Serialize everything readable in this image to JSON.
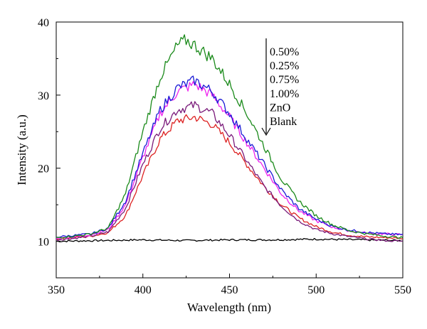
{
  "chart_data": {
    "type": "line",
    "title": "",
    "xlabel": "Wavelength (nm)",
    "ylabel": "Intensity (a.u.)",
    "xlim": [
      350,
      550
    ],
    "ylim": [
      5,
      40
    ],
    "x_ticks": [
      350,
      400,
      450,
      500,
      550
    ],
    "y_ticks": [
      10,
      20,
      30,
      40
    ],
    "grid": false,
    "legend_position": "top-right",
    "legend_arrow": true,
    "legend_labels": [
      "0.50%",
      "0.25%",
      "0.75%",
      "1.00%",
      "ZnO",
      "Blank"
    ],
    "series": [
      {
        "name": "0.50%",
        "color": "#1a8a1a",
        "points": [
          [
            350,
            10.5
          ],
          [
            360,
            10.7
          ],
          [
            370,
            11.0
          ],
          [
            380,
            11.8
          ],
          [
            390,
            16.5
          ],
          [
            400,
            25.0
          ],
          [
            410,
            32.5
          ],
          [
            420,
            36.8
          ],
          [
            425,
            37.5
          ],
          [
            430,
            36.8
          ],
          [
            440,
            35.0
          ],
          [
            450,
            31.5
          ],
          [
            460,
            27.5
          ],
          [
            470,
            23.0
          ],
          [
            480,
            18.5
          ],
          [
            490,
            15.5
          ],
          [
            500,
            13.5
          ],
          [
            510,
            12.2
          ],
          [
            520,
            11.4
          ],
          [
            530,
            11.0
          ],
          [
            540,
            10.7
          ],
          [
            550,
            10.5
          ]
        ]
      },
      {
        "name": "0.25%",
        "color": "#1a1ad6",
        "points": [
          [
            350,
            10.6
          ],
          [
            360,
            10.8
          ],
          [
            370,
            11.0
          ],
          [
            380,
            11.8
          ],
          [
            390,
            15.5
          ],
          [
            400,
            22.0
          ],
          [
            410,
            28.0
          ],
          [
            420,
            31.0
          ],
          [
            430,
            32.0
          ],
          [
            440,
            30.5
          ],
          [
            450,
            27.5
          ],
          [
            460,
            24.0
          ],
          [
            470,
            20.5
          ],
          [
            480,
            17.0
          ],
          [
            490,
            14.5
          ],
          [
            500,
            13.0
          ],
          [
            510,
            12.0
          ],
          [
            520,
            11.5
          ],
          [
            530,
            11.2
          ],
          [
            540,
            11.0
          ],
          [
            550,
            10.9
          ]
        ]
      },
      {
        "name": "0.75%",
        "color": "#ee22ee",
        "points": [
          [
            350,
            10.4
          ],
          [
            360,
            10.6
          ],
          [
            370,
            10.9
          ],
          [
            380,
            11.6
          ],
          [
            390,
            15.0
          ],
          [
            400,
            21.5
          ],
          [
            410,
            27.5
          ],
          [
            420,
            30.5
          ],
          [
            430,
            31.5
          ],
          [
            440,
            30.0
          ],
          [
            450,
            27.0
          ],
          [
            460,
            23.5
          ],
          [
            470,
            20.0
          ],
          [
            480,
            16.5
          ],
          [
            490,
            14.2
          ],
          [
            500,
            12.8
          ],
          [
            510,
            11.9
          ],
          [
            520,
            11.4
          ],
          [
            530,
            11.1
          ],
          [
            540,
            11.0
          ],
          [
            550,
            10.9
          ]
        ]
      },
      {
        "name": "1.00%",
        "color": "#7a1a7a",
        "points": [
          [
            350,
            10.2
          ],
          [
            360,
            10.4
          ],
          [
            370,
            10.7
          ],
          [
            380,
            11.3
          ],
          [
            390,
            14.5
          ],
          [
            400,
            20.5
          ],
          [
            410,
            25.5
          ],
          [
            420,
            28.0
          ],
          [
            430,
            28.6
          ],
          [
            440,
            27.5
          ],
          [
            450,
            24.5
          ],
          [
            460,
            21.0
          ],
          [
            470,
            17.5
          ],
          [
            480,
            14.8
          ],
          [
            490,
            12.8
          ],
          [
            500,
            11.6
          ],
          [
            510,
            11.0
          ],
          [
            520,
            10.6
          ],
          [
            530,
            10.3
          ],
          [
            540,
            10.1
          ],
          [
            550,
            10.0
          ]
        ]
      },
      {
        "name": "ZnO",
        "color": "#dd2222",
        "points": [
          [
            350,
            10.3
          ],
          [
            360,
            10.5
          ],
          [
            370,
            10.7
          ],
          [
            380,
            11.2
          ],
          [
            390,
            13.5
          ],
          [
            400,
            19.0
          ],
          [
            410,
            24.0
          ],
          [
            420,
            26.5
          ],
          [
            430,
            27.0
          ],
          [
            440,
            26.0
          ],
          [
            450,
            23.5
          ],
          [
            460,
            20.5
          ],
          [
            470,
            17.5
          ],
          [
            480,
            15.0
          ],
          [
            490,
            13.2
          ],
          [
            500,
            12.0
          ],
          [
            510,
            11.2
          ],
          [
            520,
            10.8
          ],
          [
            530,
            10.6
          ],
          [
            540,
            10.5
          ],
          [
            550,
            10.4
          ]
        ]
      },
      {
        "name": "Blank",
        "color": "#000000",
        "points": [
          [
            350,
            10.0
          ],
          [
            375,
            10.1
          ],
          [
            400,
            10.2
          ],
          [
            425,
            10.1
          ],
          [
            450,
            10.2
          ],
          [
            475,
            10.2
          ],
          [
            500,
            10.3
          ],
          [
            525,
            10.2
          ],
          [
            550,
            10.1
          ]
        ]
      }
    ]
  }
}
